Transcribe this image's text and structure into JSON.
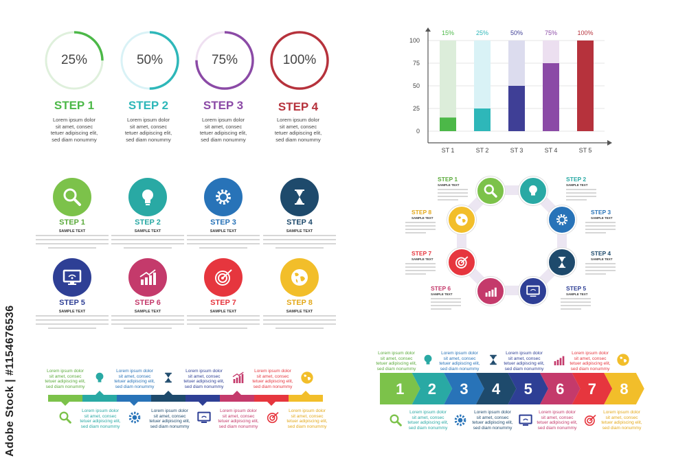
{
  "rings": [
    {
      "value": "25%",
      "fraction": 0.25,
      "color": "#4cb848",
      "track": "#dff0dc",
      "step": "STEP 1",
      "text": [
        "Lorem ipsum dolor",
        "sit amet, consec",
        "tetuer adipiscing elit,",
        "sed diam nonummy"
      ]
    },
    {
      "value": "50%",
      "fraction": 0.5,
      "color": "#2eb7b9",
      "track": "#d9f2f6",
      "step": "STEP 2",
      "text": [
        "Lorem ipsum dolor",
        "sit amet, consec",
        "tetuer adipiscing elit,",
        "sed diam nonummy"
      ]
    },
    {
      "value": "75%",
      "fraction": 0.75,
      "color": "#8b4aa6",
      "track": "#efe0f1",
      "step": "STEP 3",
      "text": [
        "Lorem ipsum dolor",
        "sit amet, consec",
        "tetuer adipiscing elit,",
        "sed diam nonummy"
      ]
    },
    {
      "value": "100%",
      "fraction": 1.0,
      "color": "#b6323c",
      "track": "#f3d9db",
      "step": "STEP 4",
      "text": [
        "Lorem ipsum dolor",
        "sit amet, consec",
        "tetuer adipiscing elit,",
        "sed diam nonummy"
      ]
    }
  ],
  "chart_data": {
    "type": "bar",
    "categories": [
      "ST 1",
      "ST 2",
      "ST 3",
      "ST 4",
      "ST 5"
    ],
    "values": [
      15,
      25,
      50,
      75,
      100
    ],
    "data_labels": [
      "15%",
      "25%",
      "50%",
      "75%",
      "100%"
    ],
    "colors": [
      "#4cb848",
      "#2eb7b9",
      "#3f3f96",
      "#8b4aa6",
      "#b6323c"
    ],
    "track_colors": [
      "#dcedda",
      "#d9f2f6",
      "#dcdcee",
      "#ecdff0",
      "#f3d9db"
    ],
    "yticks": [
      0,
      25,
      50,
      75,
      100
    ],
    "ylim": [
      0,
      100
    ],
    "grid": true
  },
  "grid_steps": [
    {
      "step": "STEP 1",
      "icon": "search-icon",
      "color": "#7cc24a",
      "title_color": "#5aaa3a"
    },
    {
      "step": "STEP 2",
      "icon": "lightbulb-icon",
      "color": "#29a9a4",
      "title_color": "#29a9a4"
    },
    {
      "step": "STEP 3",
      "icon": "gear-icon",
      "color": "#2873b8",
      "title_color": "#2873b8"
    },
    {
      "step": "STEP 4",
      "icon": "hourglass-icon",
      "color": "#1e4a6c",
      "title_color": "#1e4a6c"
    },
    {
      "step": "STEP 5",
      "icon": "monitor-wifi-icon",
      "color": "#2e3f95",
      "title_color": "#2e3f95"
    },
    {
      "step": "STEP 6",
      "icon": "growth-chart-icon",
      "color": "#c43a6b",
      "title_color": "#c43a6b"
    },
    {
      "step": "STEP 7",
      "icon": "target-icon",
      "color": "#e6363e",
      "title_color": "#e6363e"
    },
    {
      "step": "STEP 8",
      "icon": "globe-icon",
      "color": "#f2be2a",
      "title_color": "#e3a81a"
    }
  ],
  "sample_text": "SAMPLE TEXT",
  "octagon_steps": [
    {
      "step": "STEP 1",
      "color": "#5aaa3a"
    },
    {
      "step": "STEP 2",
      "color": "#29a9a4"
    },
    {
      "step": "STEP 3",
      "color": "#2873b8"
    },
    {
      "step": "STEP 4",
      "color": "#1e4a6c"
    },
    {
      "step": "STEP 5",
      "color": "#2e3f95"
    },
    {
      "step": "STEP 6",
      "color": "#c43a6b"
    },
    {
      "step": "STEP 7",
      "color": "#e6363e"
    },
    {
      "step": "STEP 8",
      "color": "#e3a81a"
    }
  ],
  "timeline": {
    "colors": [
      "#7cc24a",
      "#29a9a4",
      "#2873b8",
      "#1e4a6c",
      "#2e3f95",
      "#c43a6b",
      "#e6363e",
      "#f2be2a"
    ],
    "text": [
      "Lorem ipsum dolor",
      "sit amet, consec",
      "tetuer adipiscing elit,",
      "sed diam nonummy"
    ]
  },
  "arrows": {
    "numbers": [
      "1",
      "2",
      "3",
      "4",
      "5",
      "6",
      "7",
      "8"
    ],
    "colors": [
      "#7cc24a",
      "#29a9a4",
      "#2873b8",
      "#1e4a6c",
      "#2e3f95",
      "#c43a6b",
      "#e6363e",
      "#f2be2a"
    ],
    "text": [
      "Lorem ipsum dolor",
      "sit amet, consec",
      "tetuer adipiscing elit,",
      "sed diam nonummy"
    ]
  },
  "watermark": "Adobe Stock | #1154676536"
}
